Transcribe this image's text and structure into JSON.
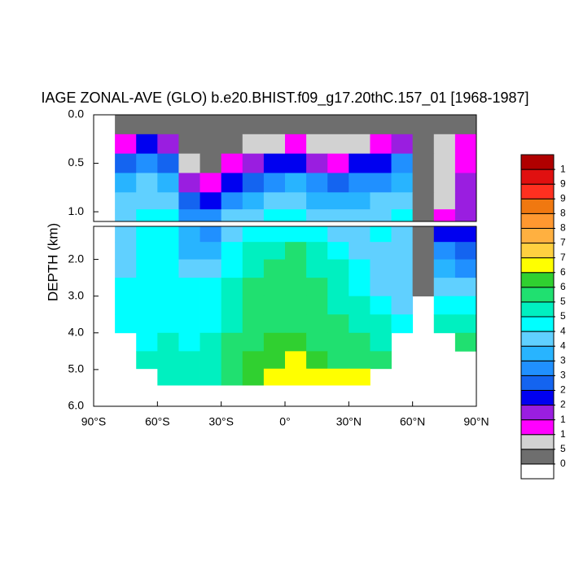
{
  "chart_data": {
    "type": "contour",
    "title": "IAGE ZONAL-AVE (GLO) b.e20.BHIST.f09_g17.20thC.157_01 [1968-1987]",
    "ylabel": "DEPTH (km)",
    "xlim": [
      -90,
      90
    ],
    "xticks": [
      {
        "value": -90,
        "label": "90°S"
      },
      {
        "value": -60,
        "label": "60°S"
      },
      {
        "value": -30,
        "label": "30°S"
      },
      {
        "value": 0,
        "label": "0°"
      },
      {
        "value": 30,
        "label": "30°N"
      },
      {
        "value": 60,
        "label": "60°N"
      },
      {
        "value": 90,
        "label": "90°N"
      }
    ],
    "panels": [
      {
        "ylim": [
          0,
          1.1
        ],
        "yticks": [
          {
            "value": 0,
            "label": "0.0"
          },
          0.5,
          {
            "value": 1,
            "label": "1.0"
          }
        ]
      },
      {
        "ylim": [
          1.1,
          6
        ],
        "yticks": [
          {
            "value": 2,
            "label": "2.0"
          },
          {
            "value": 3,
            "label": "3.0"
          },
          {
            "value": 4,
            "label": "4.0"
          },
          {
            "value": 5,
            "label": "5.0"
          },
          {
            "value": 6,
            "label": "6.0"
          }
        ]
      }
    ],
    "lat": [
      -75,
      -65,
      -55,
      -45,
      -35,
      -25,
      -15,
      -5,
      5,
      15,
      25,
      35,
      45,
      55,
      65,
      75,
      85
    ],
    "depth": [
      0.1,
      0.3,
      0.5,
      0.7,
      0.9,
      1.05,
      1.3,
      1.75,
      2.25,
      2.75,
      3.25,
      3.75,
      4.25,
      4.75,
      5.2
    ],
    "values": [
      [
        25,
        25,
        25,
        25,
        25,
        25,
        25,
        25,
        25,
        25,
        25,
        25,
        25,
        25,
        25,
        25,
        25
      ],
      [
        140,
        220,
        180,
        30,
        25,
        40,
        80,
        90,
        130,
        90,
        60,
        80,
        110,
        160,
        25,
        75,
        120
      ],
      [
        260,
        330,
        280,
        60,
        30,
        120,
        170,
        220,
        240,
        180,
        140,
        200,
        240,
        300,
        25,
        75,
        130
      ],
      [
        350,
        400,
        380,
        170,
        130,
        230,
        280,
        330,
        350,
        300,
        260,
        300,
        340,
        380,
        25,
        75,
        160
      ],
      [
        400,
        430,
        430,
        260,
        230,
        330,
        380,
        410,
        420,
        390,
        350,
        360,
        400,
        420,
        25,
        75,
        170
      ],
      [
        420,
        450,
        460,
        320,
        300,
        400,
        440,
        460,
        460,
        440,
        410,
        400,
        440,
        450,
        25,
        100,
        180
      ],
      [
        430,
        460,
        470,
        360,
        330,
        430,
        470,
        490,
        490,
        470,
        440,
        420,
        450,
        430,
        25,
        220,
        200
      ],
      [
        430,
        470,
        480,
        390,
        370,
        460,
        510,
        540,
        550,
        510,
        470,
        440,
        430,
        420,
        25,
        300,
        260
      ],
      [
        440,
        470,
        480,
        430,
        400,
        480,
        540,
        560,
        570,
        540,
        500,
        450,
        430,
        410,
        25,
        350,
        330
      ],
      [
        450,
        470,
        480,
        450,
        450,
        510,
        550,
        570,
        580,
        560,
        520,
        480,
        440,
        420,
        25,
        420,
        400
      ],
      [
        460,
        480,
        480,
        460,
        480,
        530,
        560,
        580,
        580,
        570,
        540,
        510,
        470,
        430,
        null,
        460,
        450
      ],
      [
        460,
        480,
        490,
        470,
        490,
        540,
        570,
        580,
        590,
        570,
        550,
        530,
        500,
        470,
        null,
        520,
        520
      ],
      [
        null,
        490,
        500,
        480,
        500,
        550,
        580,
        600,
        600,
        580,
        560,
        550,
        530,
        null,
        null,
        null,
        560
      ],
      [
        null,
        510,
        500,
        500,
        510,
        560,
        600,
        630,
        650,
        620,
        590,
        570,
        560,
        null,
        null,
        null,
        null
      ],
      [
        null,
        null,
        520,
        510,
        530,
        570,
        620,
        660,
        670,
        660,
        650,
        650,
        null,
        null,
        null,
        null,
        null
      ]
    ],
    "levels": [
      {
        "value": 0,
        "label": "0"
      },
      {
        "value": 50,
        "label": "5"
      },
      {
        "value": 100,
        "label": "1"
      },
      {
        "value": 150,
        "label": "1"
      },
      {
        "value": 200,
        "label": "2"
      },
      {
        "value": 250,
        "label": "2"
      },
      {
        "value": 300,
        "label": "3"
      },
      {
        "value": 350,
        "label": "3"
      },
      {
        "value": 400,
        "label": "4"
      },
      {
        "value": 450,
        "label": "4"
      },
      {
        "value": 500,
        "label": "5"
      },
      {
        "value": 550,
        "label": "5"
      },
      {
        "value": 600,
        "label": "6"
      },
      {
        "value": 650,
        "label": "6"
      },
      {
        "value": 700,
        "label": "7"
      },
      {
        "value": 750,
        "label": "7"
      },
      {
        "value": 800,
        "label": "8"
      },
      {
        "value": 850,
        "label": "8"
      },
      {
        "value": 900,
        "label": "9"
      },
      {
        "value": 950,
        "label": "9"
      },
      {
        "value": 1000,
        "label": "1"
      }
    ],
    "colors": [
      "#ffffff",
      "#6e6e6e",
      "#d2d2d2",
      "#ff00ff",
      "#9a1ee0",
      "#0000f0",
      "#1464f0",
      "#2090ff",
      "#28b4ff",
      "#60d0ff",
      "#00ffff",
      "#00f0c0",
      "#20e070",
      "#30d030",
      "#ffff00",
      "#ffd040",
      "#ffb040",
      "#ff9830",
      "#f07810",
      "#ff3020",
      "#e01010",
      "#b00000"
    ]
  }
}
